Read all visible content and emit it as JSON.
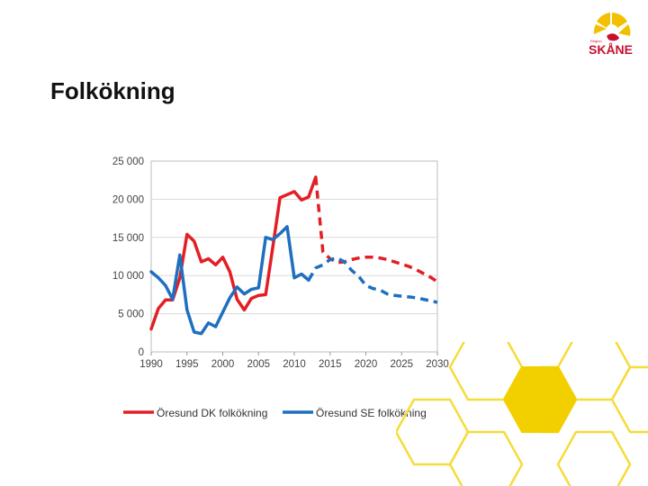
{
  "slide": {
    "title": "Folkökning"
  },
  "logo": {
    "name": "SKÅNE",
    "small_text": "Region"
  },
  "colors": {
    "dk": "#e31e24",
    "se": "#1f6fbf",
    "hex_fill": "#f2d000",
    "hex_stroke": "#f5dc3a",
    "logo_red": "#c8102e"
  },
  "chart_data": {
    "type": "line",
    "title": "",
    "xlabel": "",
    "ylabel": "",
    "xlim": [
      1990,
      2030
    ],
    "ylim": [
      0,
      25000
    ],
    "x_ticks": [
      "1990",
      "1995",
      "2000",
      "2005",
      "2010",
      "2015",
      "2020",
      "2025",
      "2030"
    ],
    "y_ticks": [
      "0",
      "5 000",
      "10 000",
      "15 000",
      "20 000",
      "25 000"
    ],
    "grid": "horizontal",
    "legend": "bottom",
    "series": [
      {
        "name": "Öresund DK folkökning",
        "color": "#e31e24",
        "historical": [
          [
            1990,
            3000
          ],
          [
            1991,
            5700
          ],
          [
            1992,
            6800
          ],
          [
            1993,
            6800
          ],
          [
            1994,
            9700
          ],
          [
            1995,
            15400
          ],
          [
            1996,
            14500
          ],
          [
            1997,
            11800
          ],
          [
            1998,
            12200
          ],
          [
            1999,
            11400
          ],
          [
            2000,
            12400
          ],
          [
            2001,
            10500
          ],
          [
            2002,
            6900
          ],
          [
            2003,
            5500
          ],
          [
            2004,
            7000
          ],
          [
            2005,
            7400
          ],
          [
            2006,
            7500
          ],
          [
            2007,
            13800
          ],
          [
            2008,
            20200
          ],
          [
            2009,
            20600
          ],
          [
            2010,
            21000
          ],
          [
            2011,
            19900
          ],
          [
            2012,
            20300
          ],
          [
            2013,
            22900
          ]
        ],
        "projection": [
          [
            2013,
            22900
          ],
          [
            2014,
            13100
          ],
          [
            2015,
            12200
          ],
          [
            2016,
            11700
          ],
          [
            2017,
            11800
          ],
          [
            2018,
            12100
          ],
          [
            2019,
            12300
          ],
          [
            2020,
            12400
          ],
          [
            2021,
            12400
          ],
          [
            2022,
            12300
          ],
          [
            2023,
            12100
          ],
          [
            2024,
            11800
          ],
          [
            2025,
            11500
          ],
          [
            2026,
            11200
          ],
          [
            2027,
            10800
          ],
          [
            2028,
            10300
          ],
          [
            2029,
            9800
          ],
          [
            2030,
            9200
          ]
        ]
      },
      {
        "name": "Öresund SE folkökning",
        "color": "#1f6fbf",
        "historical": [
          [
            1990,
            10500
          ],
          [
            1991,
            9700
          ],
          [
            1992,
            8700
          ],
          [
            1993,
            6900
          ],
          [
            1994,
            12700
          ],
          [
            1995,
            5500
          ],
          [
            1996,
            2600
          ],
          [
            1997,
            2400
          ],
          [
            1998,
            3800
          ],
          [
            1999,
            3300
          ],
          [
            2000,
            5200
          ],
          [
            2001,
            7100
          ],
          [
            2002,
            8500
          ],
          [
            2003,
            7600
          ],
          [
            2004,
            8200
          ],
          [
            2005,
            8400
          ],
          [
            2006,
            15000
          ],
          [
            2007,
            14700
          ],
          [
            2008,
            15500
          ],
          [
            2009,
            16400
          ],
          [
            2010,
            9700
          ],
          [
            2011,
            10200
          ],
          [
            2012,
            9400
          ]
        ],
        "projection": [
          [
            2012,
            9400
          ],
          [
            2013,
            11000
          ],
          [
            2014,
            11400
          ],
          [
            2015,
            12100
          ],
          [
            2016,
            12300
          ],
          [
            2017,
            11800
          ],
          [
            2018,
            10700
          ],
          [
            2019,
            9900
          ],
          [
            2020,
            8700
          ],
          [
            2021,
            8300
          ],
          [
            2022,
            8100
          ],
          [
            2023,
            7600
          ],
          [
            2024,
            7400
          ],
          [
            2025,
            7300
          ],
          [
            2026,
            7200
          ],
          [
            2027,
            7100
          ],
          [
            2028,
            6900
          ],
          [
            2029,
            6700
          ],
          [
            2030,
            6500
          ]
        ]
      }
    ]
  }
}
